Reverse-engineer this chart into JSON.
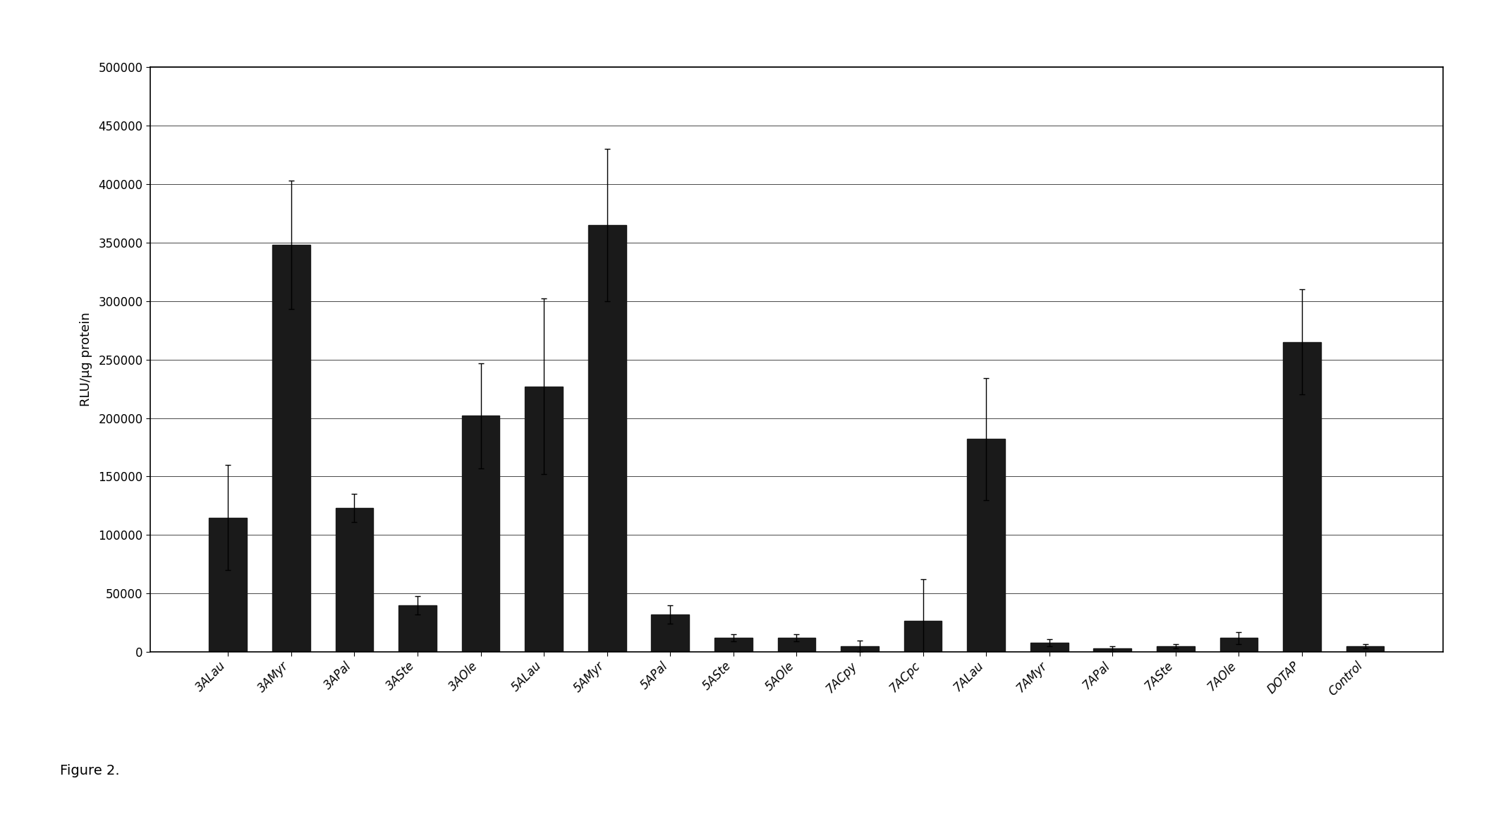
{
  "categories": [
    "3ALau",
    "3AMyr",
    "3APal",
    "3ASte",
    "3AOle",
    "5ALau",
    "5AMyr",
    "5APal",
    "5ASte",
    "5AOle",
    "7ACpy",
    "7ACpc",
    "7ALau",
    "7AMyr",
    "7APal",
    "7ASte",
    "7AOle",
    "DOTAP",
    "Control"
  ],
  "values": [
    115000,
    348000,
    123000,
    40000,
    202000,
    227000,
    365000,
    32000,
    12000,
    12000,
    5000,
    27000,
    182000,
    8000,
    3000,
    5000,
    12000,
    265000,
    5000
  ],
  "errors": [
    45000,
    55000,
    12000,
    8000,
    45000,
    75000,
    65000,
    8000,
    3000,
    3000,
    5000,
    35000,
    52000,
    3000,
    2000,
    2000,
    5000,
    45000,
    2000
  ],
  "bar_color": "#1a1a1a",
  "ylabel": "RLU/µg protein",
  "ylim": [
    0,
    500000
  ],
  "yticks": [
    0,
    50000,
    100000,
    150000,
    200000,
    250000,
    300000,
    350000,
    400000,
    450000,
    500000
  ],
  "figure_label": "Figure 2.",
  "background_color": "#ffffff",
  "bar_width": 0.6,
  "axis_fontsize": 13,
  "tick_fontsize": 12,
  "ylabel_fontsize": 13
}
